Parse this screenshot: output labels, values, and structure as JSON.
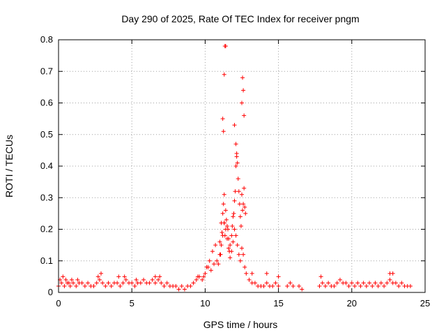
{
  "chart_data": {
    "type": "scatter",
    "title": "Day 290 of 2025, Rate Of TEC Index for receiver pngm",
    "xlabel": "GPS time / hours",
    "ylabel": "ROTI / TECUs",
    "xlim": [
      0,
      25
    ],
    "ylim": [
      0,
      0.8
    ],
    "xticks": [
      "0",
      "5",
      "10",
      "15",
      "20",
      "25"
    ],
    "yticks": [
      "0",
      "0.1",
      "0.2",
      "0.3",
      "0.4",
      "0.5",
      "0.6",
      "0.7",
      "0.8"
    ],
    "grid": true,
    "marker": "+",
    "series_color": "#ff0000",
    "series": [
      {
        "name": "ROTI",
        "x": [
          0.0,
          0.2,
          0.4,
          0.6,
          0.8,
          1.0,
          1.2,
          1.4,
          1.6,
          1.8,
          2.0,
          2.2,
          2.4,
          2.6,
          2.8,
          3.0,
          3.2,
          3.4,
          3.6,
          3.8,
          4.0,
          4.2,
          4.4,
          4.6,
          4.8,
          5.0,
          5.2,
          5.4,
          5.6,
          5.8,
          6.0,
          6.2,
          6.4,
          6.6,
          6.8,
          7.0,
          7.2,
          7.4,
          7.6,
          7.8,
          8.0,
          8.2,
          8.4,
          8.6,
          8.8,
          9.0,
          9.2,
          9.4,
          9.6,
          9.8,
          10.0,
          10.2,
          10.4,
          10.6,
          10.8,
          11.0,
          11.1,
          11.2,
          11.3,
          11.4,
          11.5,
          11.6,
          11.7,
          11.8,
          11.9,
          12.0,
          12.1,
          12.2,
          12.3,
          12.4,
          12.5,
          12.6,
          12.7,
          12.8,
          13.0,
          13.2,
          13.4,
          13.6,
          13.8,
          14.0,
          14.2,
          14.4,
          14.6,
          14.8,
          15.0,
          15.6,
          15.8,
          16.0,
          16.4,
          16.6,
          17.8,
          18.0,
          18.2,
          18.4,
          18.6,
          18.8,
          19.0,
          19.2,
          19.4,
          19.6,
          19.8,
          20.0,
          20.2,
          20.4,
          20.6,
          20.8,
          21.0,
          21.2,
          21.4,
          21.6,
          21.8,
          22.0,
          22.2,
          22.4,
          22.6,
          22.8,
          23.0,
          23.2,
          23.4,
          23.6,
          23.8,
          24.0,
          0.1,
          0.3,
          0.5,
          0.7,
          0.9,
          1.3,
          2.7,
          2.9,
          4.1,
          4.5,
          5.3,
          6.6,
          6.9,
          9.5,
          9.9,
          10.1,
          10.3,
          10.5,
          10.7,
          10.9,
          11.0,
          11.05,
          11.1,
          11.15,
          11.2,
          11.25,
          11.3,
          11.3,
          11.35,
          11.4,
          11.45,
          11.5,
          11.55,
          11.6,
          11.65,
          11.7,
          11.8,
          11.85,
          11.9,
          11.95,
          12.0,
          12.05,
          12.1,
          12.15,
          12.2,
          12.25,
          12.3,
          12.35,
          12.4,
          12.45,
          12.5,
          12.55,
          12.6,
          12.65,
          12.7,
          12.75,
          11.3,
          11.35,
          11.4,
          12.55,
          12.6,
          12.65,
          12.5,
          12.0,
          12.1,
          12.15,
          11.2,
          11.25,
          13.2,
          14.2,
          15.0,
          17.9,
          22.6,
          22.8
        ],
        "y": [
          0.02,
          0.03,
          0.02,
          0.03,
          0.02,
          0.03,
          0.02,
          0.03,
          0.03,
          0.02,
          0.03,
          0.02,
          0.02,
          0.03,
          0.04,
          0.03,
          0.02,
          0.03,
          0.02,
          0.03,
          0.03,
          0.02,
          0.03,
          0.04,
          0.03,
          0.03,
          0.02,
          0.03,
          0.03,
          0.04,
          0.03,
          0.03,
          0.04,
          0.03,
          0.04,
          0.03,
          0.02,
          0.03,
          0.02,
          0.02,
          0.02,
          0.01,
          0.02,
          0.01,
          0.02,
          0.02,
          0.03,
          0.04,
          0.05,
          0.04,
          0.06,
          0.08,
          0.07,
          0.09,
          0.1,
          0.12,
          0.15,
          0.18,
          0.22,
          0.2,
          0.17,
          0.14,
          0.11,
          0.13,
          0.16,
          0.2,
          0.18,
          0.15,
          0.12,
          0.1,
          0.14,
          0.12,
          0.08,
          0.06,
          0.04,
          0.03,
          0.03,
          0.02,
          0.02,
          0.02,
          0.03,
          0.02,
          0.02,
          0.03,
          0.02,
          0.02,
          0.03,
          0.02,
          0.02,
          0.01,
          0.02,
          0.03,
          0.02,
          0.03,
          0.02,
          0.02,
          0.03,
          0.04,
          0.03,
          0.03,
          0.02,
          0.03,
          0.02,
          0.03,
          0.02,
          0.03,
          0.02,
          0.03,
          0.02,
          0.03,
          0.02,
          0.03,
          0.02,
          0.03,
          0.04,
          0.03,
          0.03,
          0.02,
          0.03,
          0.02,
          0.02,
          0.02,
          0.04,
          0.05,
          0.04,
          0.03,
          0.04,
          0.04,
          0.05,
          0.06,
          0.05,
          0.05,
          0.04,
          0.05,
          0.05,
          0.05,
          0.05,
          0.08,
          0.1,
          0.13,
          0.15,
          0.09,
          0.16,
          0.12,
          0.22,
          0.19,
          0.25,
          0.28,
          0.22,
          0.31,
          0.18,
          0.26,
          0.23,
          0.21,
          0.2,
          0.17,
          0.13,
          0.15,
          0.18,
          0.21,
          0.24,
          0.25,
          0.29,
          0.32,
          0.4,
          0.43,
          0.41,
          0.36,
          0.32,
          0.28,
          0.24,
          0.21,
          0.31,
          0.26,
          0.28,
          0.33,
          0.27,
          0.25,
          0.69,
          0.78,
          0.78,
          0.68,
          0.64,
          0.56,
          0.6,
          0.53,
          0.47,
          0.44,
          0.55,
          0.51,
          0.06,
          0.06,
          0.05,
          0.05,
          0.06,
          0.06
        ]
      }
    ]
  }
}
